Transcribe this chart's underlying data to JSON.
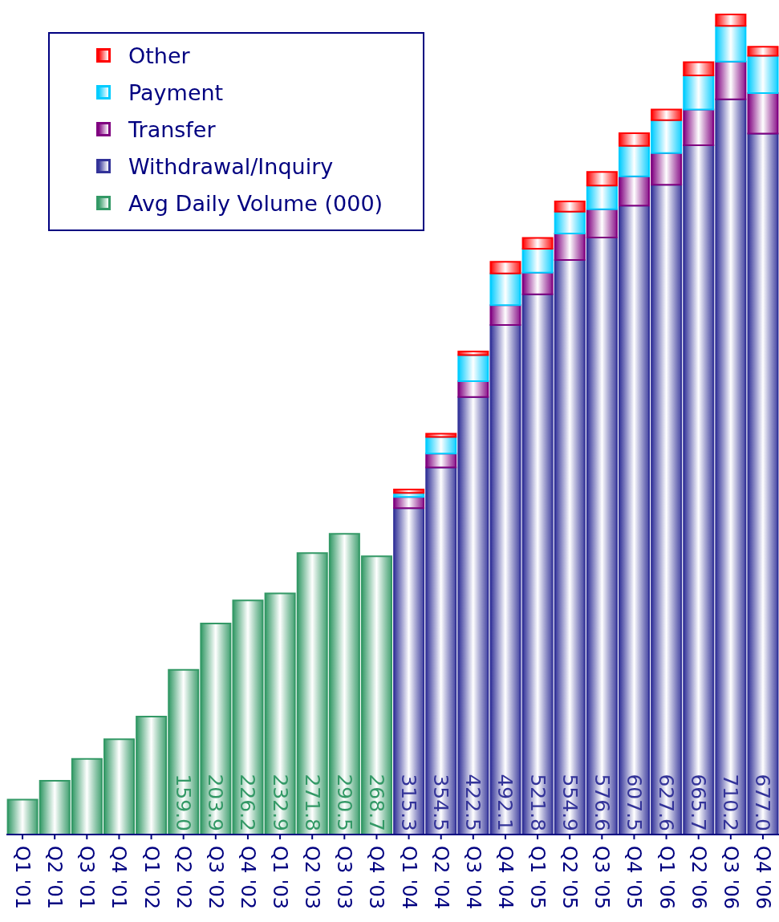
{
  "chart_data": {
    "type": "bar",
    "stacked": true,
    "legend": "top left",
    "categories": [
      "Q1 '01",
      "Q2 '01",
      "Q3 '01",
      "Q4 '01",
      "Q1 '02",
      "Q2 '02",
      "Q3 '02",
      "Q4 '02",
      "Q1 '03",
      "Q2 '03",
      "Q3 '03",
      "Q4 '03",
      "Q1 '04",
      "Q2 '04",
      "Q3 '04",
      "Q4 '04",
      "Q1 '05",
      "Q2 '05",
      "Q3 '05",
      "Q4 '05",
      "Q1 '06",
      "Q2 '06",
      "Q3 '06",
      "Q4 '06"
    ],
    "series": [
      {
        "name": "Avg Daily Volume (000)",
        "color": "#339966",
        "values": [
          33.8,
          52,
          73,
          92,
          114,
          159.0,
          203.9,
          226.2,
          232.9,
          271.8,
          290.5,
          268.7,
          null,
          null,
          null,
          null,
          null,
          null,
          null,
          null,
          null,
          null,
          null,
          null
        ],
        "value_labels": [
          null,
          null,
          null,
          null,
          null,
          "159.0",
          "203.9",
          "226.2",
          "232.9",
          "271.8",
          "290.5",
          "268.7",
          null,
          null,
          null,
          null,
          null,
          null,
          null,
          null,
          null,
          null,
          null,
          null
        ]
      },
      {
        "name": "Withdrawal/Inquiry",
        "color": "#333399",
        "values": [
          null,
          null,
          null,
          null,
          null,
          null,
          null,
          null,
          null,
          null,
          null,
          null,
          315.3,
          354.5,
          422.5,
          492.1,
          521.8,
          554.9,
          576.6,
          607.5,
          627.6,
          665.7,
          710.2,
          677.0
        ],
        "value_labels": [
          null,
          null,
          null,
          null,
          null,
          null,
          null,
          null,
          null,
          null,
          null,
          null,
          "315.3",
          "354.5",
          "422.5",
          "492.1",
          "521.8",
          "554.9",
          "576.6",
          "607.5",
          "627.6",
          "665.7",
          "710.2",
          "677.0"
        ]
      },
      {
        "name": "Transfer",
        "color": "#800080",
        "values": [
          null,
          null,
          null,
          null,
          null,
          null,
          null,
          null,
          null,
          null,
          null,
          null,
          10.8,
          13.4,
          15.4,
          19.2,
          21.0,
          25.7,
          27.3,
          28.2,
          30.7,
          34.6,
          36.3,
          39.2
        ]
      },
      {
        "name": "Payment",
        "color": "#00ccff",
        "values": [
          null,
          null,
          null,
          null,
          null,
          null,
          null,
          null,
          null,
          null,
          null,
          null,
          3.8,
          16.1,
          25.1,
          30.7,
          23.0,
          21.0,
          23.0,
          29.4,
          31.7,
          32.8,
          34.6,
          35.9
        ]
      },
      {
        "name": "Other",
        "color": "#ff0000",
        "values": [
          null,
          null,
          null,
          null,
          null,
          null,
          null,
          null,
          null,
          null,
          null,
          null,
          3.4,
          3.1,
          3.6,
          11.1,
          10.5,
          10.0,
          13.1,
          12.3,
          10.2,
          12.8,
          11.0,
          8.9
        ]
      }
    ]
  }
}
